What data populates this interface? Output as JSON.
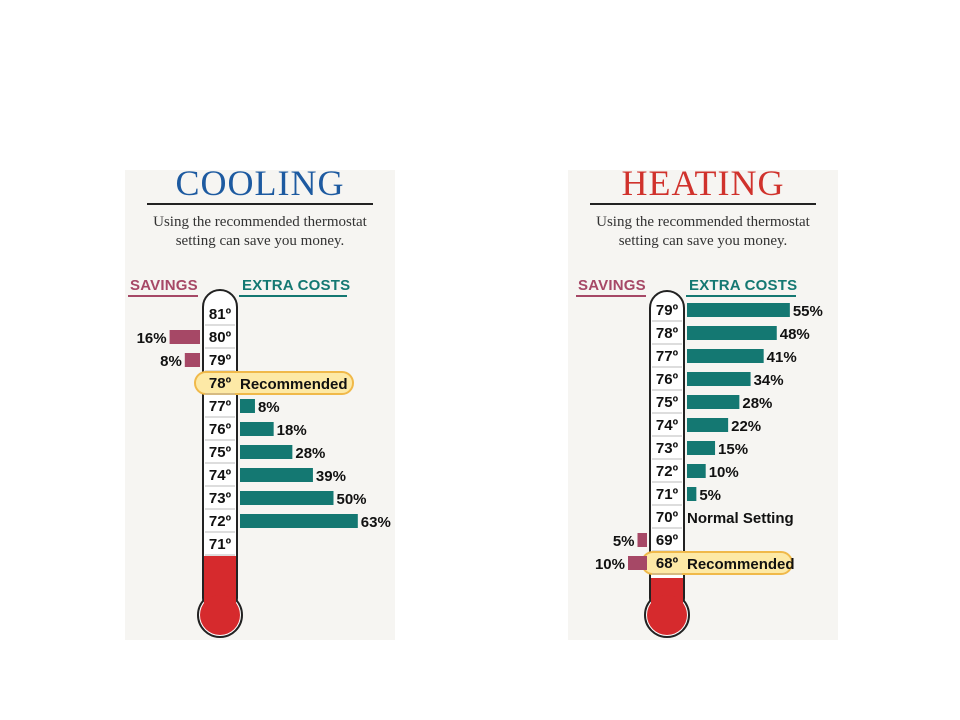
{
  "colors": {
    "cool_title": "#1d5aa0",
    "heat_title": "#d0322c",
    "savings": "#a64866",
    "extra": "#147872",
    "recommend_fill": "#fde9a6",
    "recommend_stroke": "#f0b94a",
    "recommend_text": "#1a4d8c",
    "mercury": "#d62a2d"
  },
  "labels": {
    "savings": "SAVINGS",
    "extra": "EXTRA COSTS"
  },
  "chart_data": [
    {
      "type": "bar",
      "title": "COOLING",
      "subtitle": [
        "Using the recommended thermostat",
        "setting can save you money."
      ],
      "rows": [
        {
          "temp": "81º",
          "savings": null,
          "extra": null,
          "note": ""
        },
        {
          "temp": "80º",
          "savings": 16,
          "extra": null,
          "note": ""
        },
        {
          "temp": "79º",
          "savings": 8,
          "extra": null,
          "note": ""
        },
        {
          "temp": "78º",
          "savings": null,
          "extra": null,
          "note": "Recommended",
          "recommended": true
        },
        {
          "temp": "77º",
          "savings": null,
          "extra": 8,
          "note": ""
        },
        {
          "temp": "76º",
          "savings": null,
          "extra": 18,
          "note": ""
        },
        {
          "temp": "75º",
          "savings": null,
          "extra": 28,
          "note": ""
        },
        {
          "temp": "74º",
          "savings": null,
          "extra": 39,
          "note": ""
        },
        {
          "temp": "73º",
          "savings": null,
          "extra": 50,
          "note": ""
        },
        {
          "temp": "72º",
          "savings": null,
          "extra": 63,
          "note": ""
        },
        {
          "temp": "71º",
          "savings": null,
          "extra": null,
          "note": ""
        }
      ]
    },
    {
      "type": "bar",
      "title": "HEATING",
      "subtitle": [
        "Using the recommended thermostat",
        "setting can save you money."
      ],
      "rows": [
        {
          "temp": "79º",
          "savings": null,
          "extra": 55,
          "note": ""
        },
        {
          "temp": "78º",
          "savings": null,
          "extra": 48,
          "note": ""
        },
        {
          "temp": "77º",
          "savings": null,
          "extra": 41,
          "note": ""
        },
        {
          "temp": "76º",
          "savings": null,
          "extra": 34,
          "note": ""
        },
        {
          "temp": "75º",
          "savings": null,
          "extra": 28,
          "note": ""
        },
        {
          "temp": "74º",
          "savings": null,
          "extra": 22,
          "note": ""
        },
        {
          "temp": "73º",
          "savings": null,
          "extra": 15,
          "note": ""
        },
        {
          "temp": "72º",
          "savings": null,
          "extra": 10,
          "note": ""
        },
        {
          "temp": "71º",
          "savings": null,
          "extra": 5,
          "note": ""
        },
        {
          "temp": "70º",
          "savings": null,
          "extra": null,
          "note": "Normal Setting"
        },
        {
          "temp": "69º",
          "savings": 5,
          "extra": null,
          "note": ""
        },
        {
          "temp": "68º",
          "savings": 10,
          "extra": null,
          "note": "Recommended",
          "recommended": true
        }
      ]
    }
  ]
}
